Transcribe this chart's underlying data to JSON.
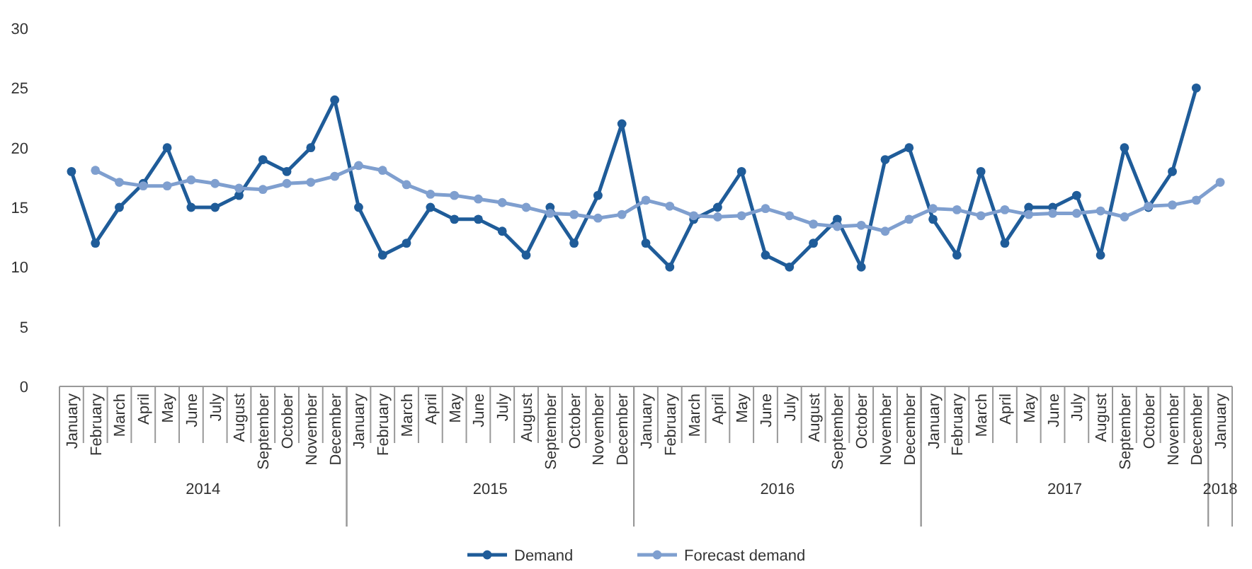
{
  "chart_data": {
    "type": "line",
    "categories": [
      "January",
      "February",
      "March",
      "April",
      "May",
      "June",
      "July",
      "August",
      "September",
      "October",
      "November",
      "December",
      "January",
      "February",
      "March",
      "April",
      "May",
      "June",
      "July",
      "August",
      "September",
      "October",
      "November",
      "December",
      "January",
      "February",
      "March",
      "April",
      "May",
      "June",
      "July",
      "August",
      "September",
      "October",
      "November",
      "December",
      "January",
      "February",
      "March",
      "April",
      "May",
      "June",
      "July",
      "August",
      "September",
      "October",
      "November",
      "December",
      "January"
    ],
    "series": [
      {
        "name": "Demand",
        "color": "#1f5c99",
        "values": [
          18,
          12,
          15,
          17,
          20,
          15,
          15,
          16,
          19,
          18,
          20,
          24,
          15,
          11,
          12,
          15,
          14,
          14,
          13,
          11,
          15,
          12,
          16,
          22,
          12,
          10,
          14,
          15,
          18,
          11,
          10,
          12,
          14,
          10,
          19,
          20,
          14,
          11,
          18,
          12,
          15,
          15,
          16,
          11,
          20,
          15,
          18,
          25,
          null
        ]
      },
      {
        "name": "Forecast demand",
        "color": "#7f9fcf",
        "values": [
          null,
          18.1,
          17.1,
          16.8,
          16.8,
          17.3,
          17.0,
          16.6,
          16.5,
          17.0,
          17.1,
          17.6,
          18.5,
          18.1,
          16.9,
          16.1,
          16.0,
          15.7,
          15.4,
          15.0,
          14.5,
          14.4,
          14.1,
          14.4,
          15.6,
          15.1,
          14.3,
          14.2,
          14.3,
          14.9,
          14.3,
          13.6,
          13.4,
          13.5,
          13.0,
          14.0,
          14.9,
          14.8,
          14.3,
          14.8,
          14.4,
          14.5,
          14.5,
          14.7,
          14.2,
          15.1,
          15.2,
          15.6,
          17.1
        ]
      }
    ],
    "ylim": [
      0,
      30
    ],
    "yticks": [
      0,
      5,
      10,
      15,
      20,
      25,
      30
    ],
    "grid": false,
    "legend": "bottom",
    "marker": "circle",
    "line_style": "solid",
    "annotations": [
      "2014",
      "2015",
      "2016",
      "2017",
      "2018"
    ]
  }
}
